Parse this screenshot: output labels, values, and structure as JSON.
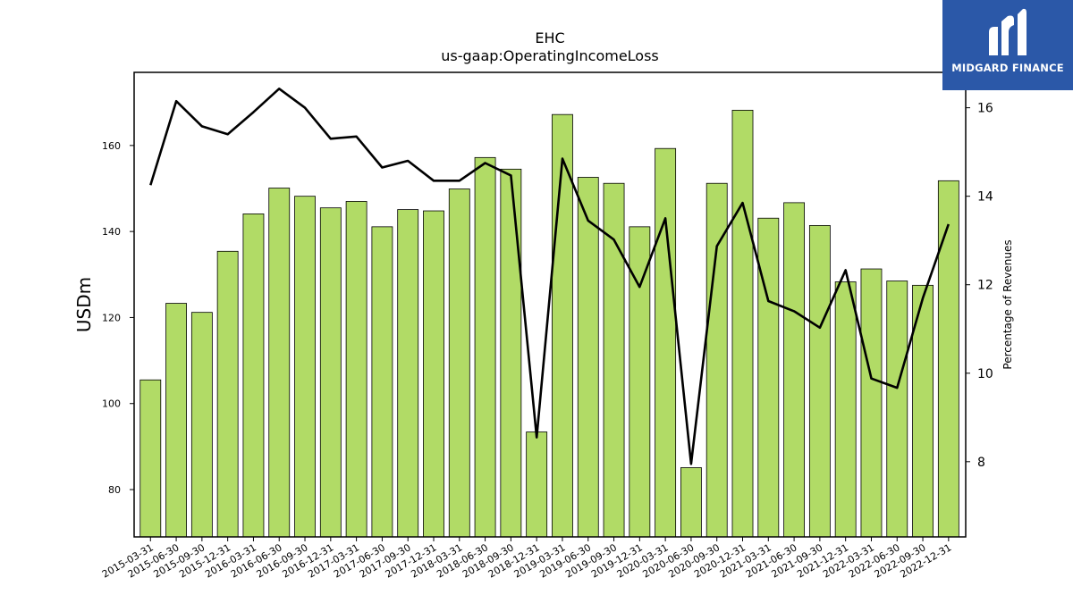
{
  "chart_data": {
    "type": "bar",
    "title": "EHC",
    "subtitle": "us-gaap:OperatingIncomeLoss",
    "ylabel": "USDm",
    "y2label": "Percentage of Revenues",
    "ylim": [
      69,
      177
    ],
    "y2lim": [
      6.3,
      16.8
    ],
    "yticks": [
      80,
      100,
      120,
      140,
      160
    ],
    "y2ticks": [
      8,
      10,
      12,
      14,
      16
    ],
    "bar_color": "#b1db66",
    "line_color": "#000000",
    "categories": [
      "2015-03-31",
      "2015-06-30",
      "2015-09-30",
      "2015-12-31",
      "2016-03-31",
      "2016-06-30",
      "2016-09-30",
      "2016-12-31",
      "2017-03-31",
      "2017-06-30",
      "2017-09-30",
      "2017-12-31",
      "2018-03-31",
      "2018-06-30",
      "2018-09-30",
      "2018-12-31",
      "2019-03-31",
      "2019-06-30",
      "2019-09-30",
      "2019-12-31",
      "2020-03-31",
      "2020-06-30",
      "2020-09-30",
      "2020-12-31",
      "2021-03-31",
      "2021-06-30",
      "2021-09-30",
      "2021-12-31",
      "2022-03-31",
      "2022-06-30",
      "2022-09-30",
      "2022-12-31"
    ],
    "series": [
      {
        "kind": "bar",
        "axis": "left",
        "values": [
          105.5,
          123.3,
          121.2,
          135.4,
          144.1,
          150.1,
          148.2,
          145.5,
          147.0,
          141.1,
          145.1,
          144.8,
          149.9,
          157.2,
          154.5,
          93.4,
          167.2,
          152.6,
          151.2,
          141.1,
          159.3,
          85.1,
          151.2,
          168.2,
          143.1,
          146.7,
          141.4,
          128.3,
          131.3,
          128.5,
          127.5,
          151.8
        ]
      },
      {
        "kind": "line",
        "axis": "right",
        "values": [
          14.25,
          16.15,
          15.58,
          15.4,
          15.9,
          16.43,
          16.0,
          15.3,
          15.35,
          14.65,
          14.8,
          14.35,
          14.35,
          14.75,
          14.47,
          8.55,
          14.85,
          13.45,
          13.02,
          11.95,
          13.5,
          7.95,
          12.87,
          13.85,
          11.63,
          11.4,
          11.03,
          12.33,
          9.88,
          9.67,
          11.7,
          13.37
        ]
      }
    ]
  },
  "logo": {
    "text": "MIDGARD FINANCE"
  }
}
